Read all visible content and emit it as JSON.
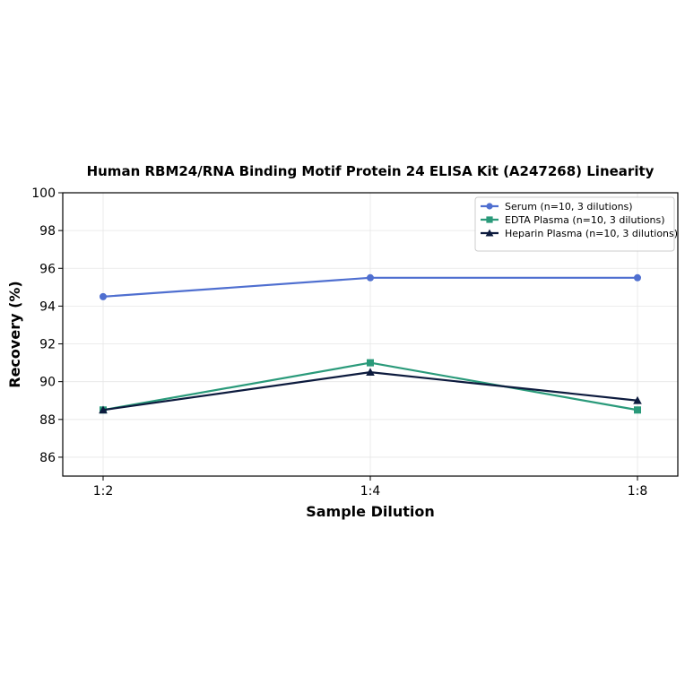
{
  "chart_data": {
    "type": "line",
    "title": "Human RBM24/RNA Binding Motif Protein 24 ELISA Kit (A247268) Linearity",
    "xlabel": "Sample Dilution",
    "ylabel": "Recovery (%)",
    "categories": [
      "1:2",
      "1:4",
      "1:8"
    ],
    "ylim": [
      85,
      100
    ],
    "yticks": [
      86,
      88,
      90,
      92,
      94,
      96,
      98,
      100
    ],
    "grid": true,
    "legend_position": "top-right",
    "series": [
      {
        "name": "Serum (n=10, 3 dilutions)",
        "values": [
          94.5,
          95.5,
          95.5
        ],
        "color": "#4F6FD0",
        "marker": "circle"
      },
      {
        "name": "EDTA Plasma (n=10, 3 dilutions)",
        "values": [
          88.5,
          91.0,
          88.5
        ],
        "color": "#2A9A7A",
        "marker": "square"
      },
      {
        "name": "Heparin Plasma (n=10, 3 dilutions)",
        "values": [
          88.5,
          90.5,
          89.0
        ],
        "color": "#0D1B3E",
        "marker": "triangle"
      }
    ]
  }
}
